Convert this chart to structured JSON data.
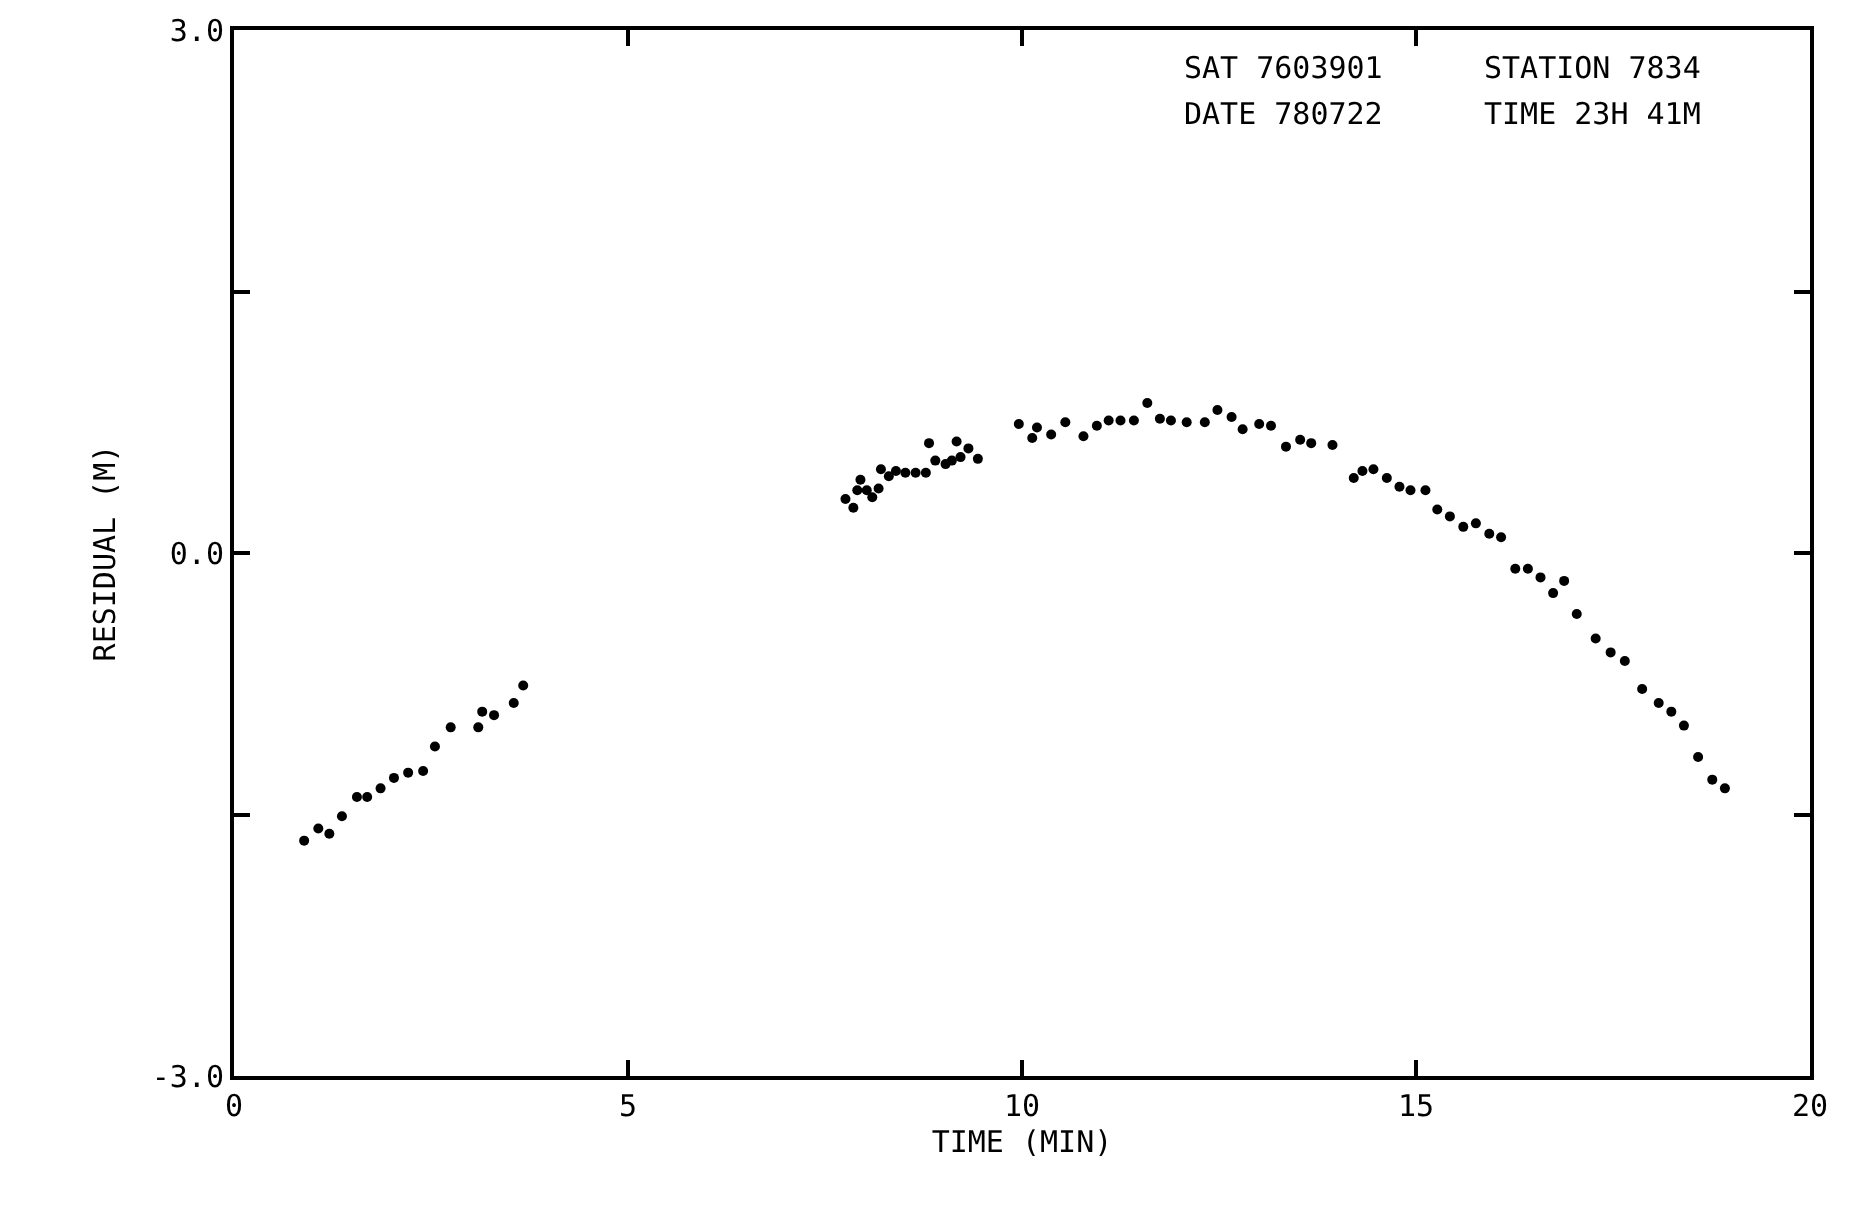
{
  "chart_data": {
    "type": "scatter",
    "xlabel": "TIME (MIN)",
    "ylabel": "RESIDUAL (M)",
    "annotations": [
      "SAT 7603901",
      "STATION 7834",
      "DATE 780722",
      "TIME 23H 41M"
    ],
    "xlim": [
      0,
      20
    ],
    "xticks": [
      0,
      5,
      10,
      15,
      20
    ],
    "ylim": [
      -3,
      3
    ],
    "yticks": [
      {
        "value": 3,
        "label": "3.0"
      },
      {
        "value": 1.5,
        "label": null
      },
      {
        "value": 0,
        "label": "0.0"
      },
      {
        "value": -1.5,
        "label": null
      },
      {
        "value": -3,
        "label": "-3.0"
      }
    ],
    "grid": false,
    "marker": "circle",
    "series": [
      {
        "color": "#000000",
        "x": [
          0.89,
          1.07,
          1.21,
          1.37,
          1.56,
          1.69,
          1.86,
          2.03,
          2.21,
          2.4,
          2.55,
          2.75,
          3.1,
          3.15,
          3.3,
          3.55,
          3.67,
          7.76,
          7.86,
          7.91,
          7.95,
          8.03,
          8.1,
          8.18,
          8.21,
          8.31,
          8.4,
          8.52,
          8.65,
          8.78,
          8.82,
          8.9,
          9.03,
          9.11,
          9.17,
          9.22,
          9.32,
          9.44,
          9.96,
          10.13,
          10.19,
          10.37,
          10.55,
          10.78,
          10.95,
          11.1,
          11.25,
          11.42,
          11.59,
          11.75,
          11.89,
          12.09,
          12.32,
          12.48,
          12.66,
          12.8,
          13.01,
          13.16,
          13.35,
          13.53,
          13.67,
          13.94,
          14.21,
          14.32,
          14.46,
          14.63,
          14.79,
          14.93,
          15.12,
          15.27,
          15.43,
          15.6,
          15.76,
          15.93,
          16.08,
          16.26,
          16.42,
          16.58,
          16.74,
          16.88,
          17.04,
          17.28,
          17.47,
          17.65,
          17.87,
          18.08,
          18.24,
          18.4,
          18.58,
          18.76,
          18.92
        ],
        "values": [
          -1.65,
          -1.58,
          -1.61,
          -1.51,
          -1.4,
          -1.4,
          -1.35,
          -1.29,
          -1.26,
          -1.25,
          -1.11,
          -1.0,
          -1.0,
          -0.91,
          -0.93,
          -0.86,
          -0.76,
          0.31,
          0.26,
          0.36,
          0.42,
          0.36,
          0.32,
          0.37,
          0.48,
          0.44,
          0.47,
          0.46,
          0.46,
          0.46,
          0.63,
          0.53,
          0.51,
          0.53,
          0.64,
          0.55,
          0.6,
          0.54,
          0.74,
          0.66,
          0.72,
          0.68,
          0.75,
          0.67,
          0.73,
          0.76,
          0.76,
          0.76,
          0.86,
          0.77,
          0.76,
          0.75,
          0.75,
          0.82,
          0.78,
          0.71,
          0.74,
          0.73,
          0.61,
          0.65,
          0.63,
          0.62,
          0.43,
          0.47,
          0.48,
          0.43,
          0.38,
          0.36,
          0.36,
          0.25,
          0.21,
          0.15,
          0.17,
          0.11,
          0.09,
          -0.09,
          -0.09,
          -0.14,
          -0.23,
          -0.16,
          -0.35,
          -0.49,
          -0.57,
          -0.62,
          -0.78,
          -0.86,
          -0.91,
          -0.99,
          -1.17,
          -1.3,
          -1.35
        ]
      }
    ]
  }
}
